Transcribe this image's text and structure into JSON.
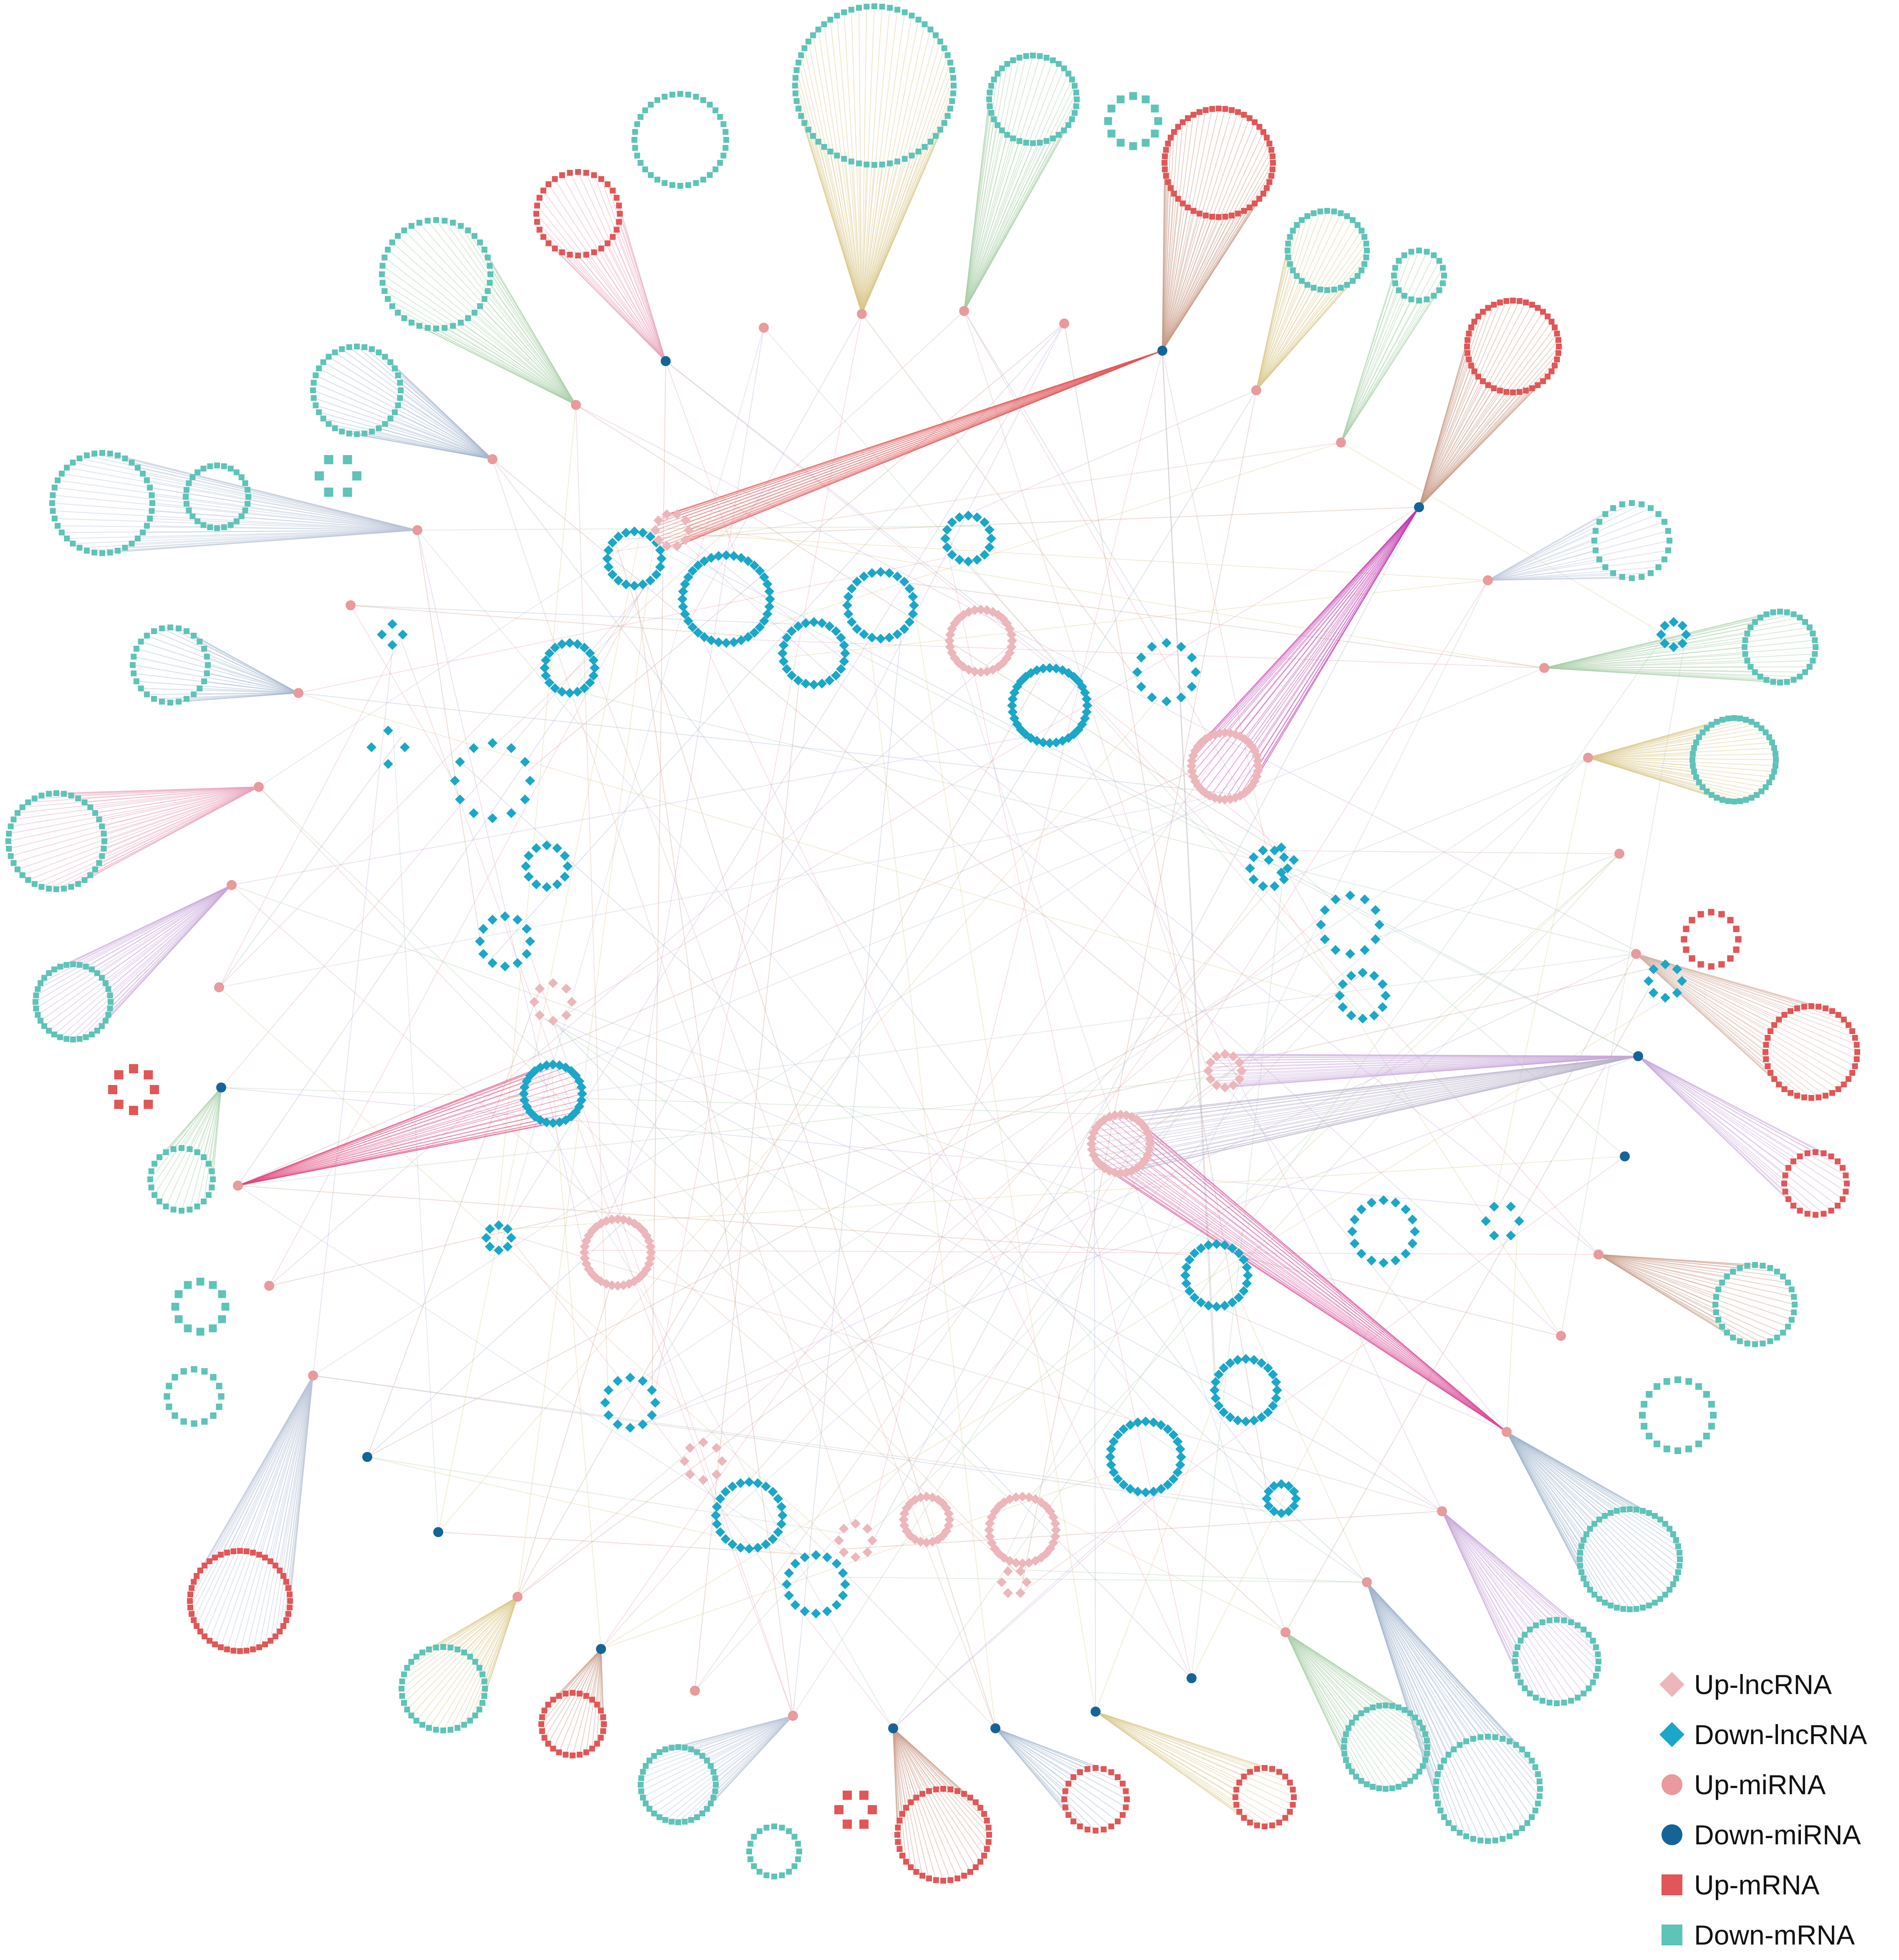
{
  "colors": {
    "up_lncrna": "#ecb6bb",
    "down_lncrna": "#1aa7c9",
    "up_mirna": "#e99a9c",
    "down_mirna": "#156498",
    "up_mrna": "#e15656",
    "down_mrna": "#5ec3b8"
  },
  "legend": [
    {
      "label": "Up-lncRNA",
      "shape": "diamond-icon",
      "color": "#ecb6bb"
    },
    {
      "label": "Down-lncRNA",
      "shape": "diamond-icon",
      "color": "#1aa7c9"
    },
    {
      "label": "Up-miRNA",
      "shape": "circle-icon",
      "color": "#e99a9c"
    },
    {
      "label": "Down-miRNA",
      "shape": "circle-icon",
      "color": "#156498"
    },
    {
      "label": "Up-mRNA",
      "shape": "square-icon",
      "color": "#e15656"
    },
    {
      "label": "Down-mRNA",
      "shape": "square-icon",
      "color": "#5ec3b8"
    }
  ]
}
